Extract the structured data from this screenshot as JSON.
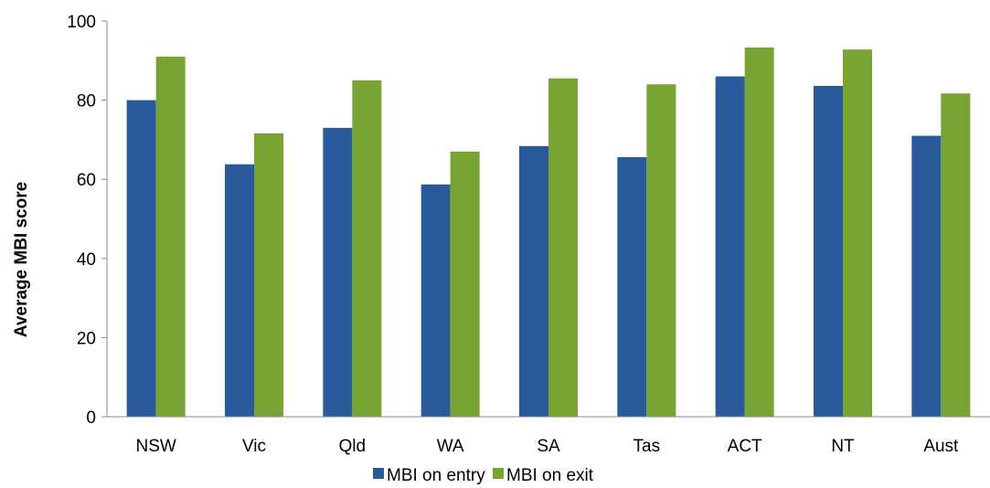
{
  "chart_data": {
    "type": "bar",
    "title": "",
    "xlabel": "",
    "ylabel": "Average MBI score",
    "ylim": [
      0,
      100
    ],
    "yticks": [
      0,
      20,
      40,
      60,
      80,
      100
    ],
    "categories": [
      "NSW",
      "Vic",
      "Qld",
      "WA",
      "SA",
      "Tas",
      "ACT",
      "NT",
      "Aust"
    ],
    "series": [
      {
        "name": "MBI on entry",
        "color": "#2a5a9b",
        "values": [
          80,
          63.8,
          73,
          58.7,
          68.4,
          65.6,
          86,
          83.6,
          71
        ]
      },
      {
        "name": "MBI on exit",
        "color": "#78a434",
        "values": [
          91,
          71.6,
          85,
          67,
          85.5,
          84,
          93.3,
          92.8,
          81.7
        ]
      }
    ],
    "grid": false,
    "legend_position": "bottom"
  }
}
